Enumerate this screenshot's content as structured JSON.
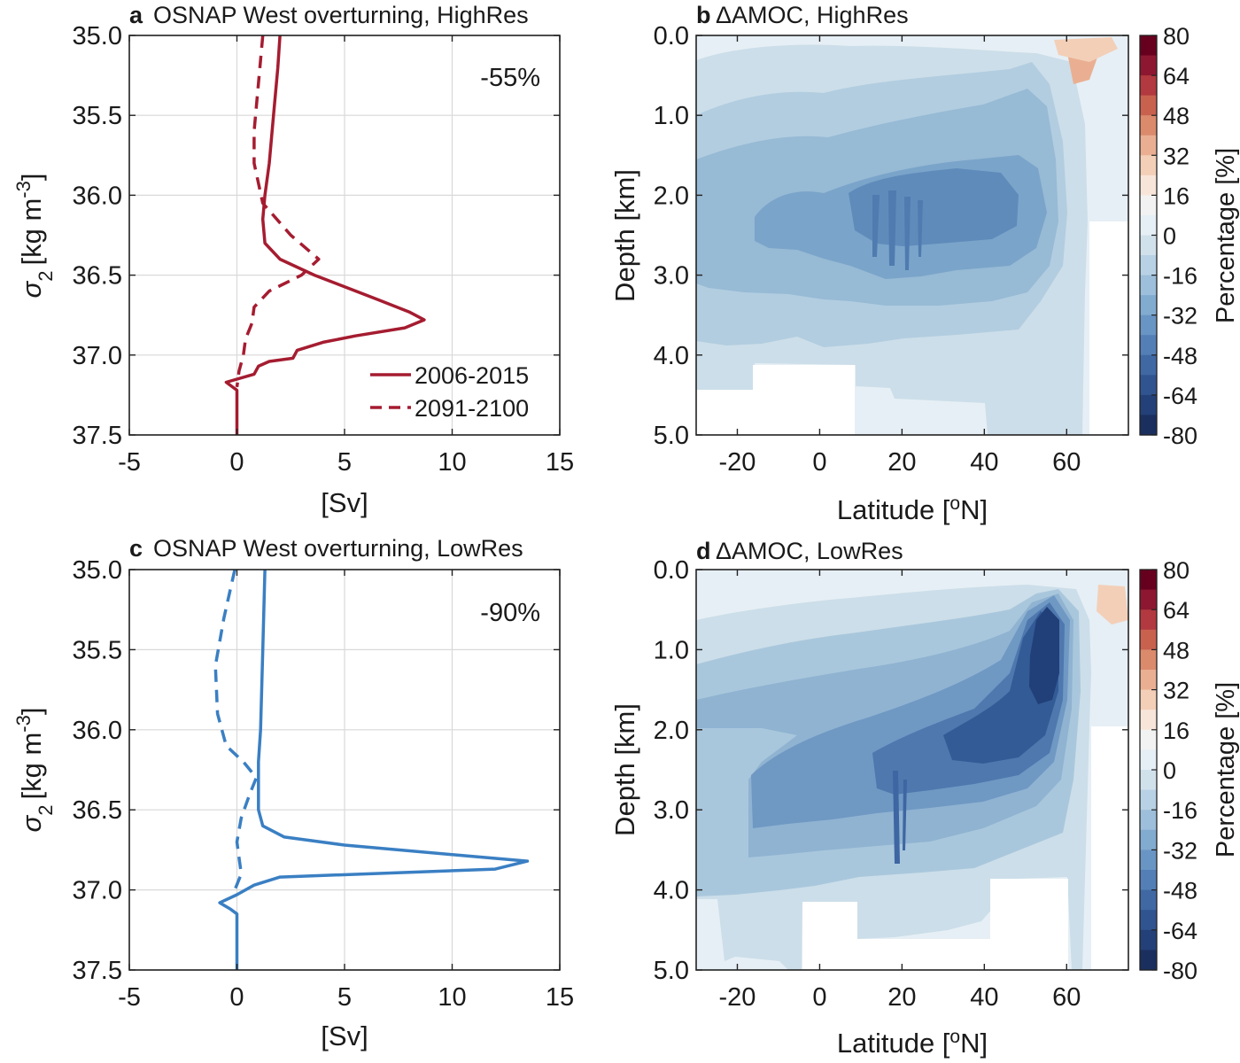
{
  "chart_data": [
    {
      "panel": "a",
      "type": "line",
      "title_letter": "a",
      "title": "OSNAP West overturning, HighRes",
      "annotation": "-55%",
      "xlabel": "[Sv]",
      "ylabel_symbol": "σ",
      "ylabel_sub": "2",
      "ylabel_unit": "[kg m",
      "ylabel_sup": "-3",
      "ylabel_close": "]",
      "xlim": [
        -5,
        15
      ],
      "ylim": [
        35.0,
        37.5
      ],
      "y_reversed": true,
      "xticks": [
        -5,
        0,
        5,
        10,
        15
      ],
      "xtick_labels": [
        "-5",
        "0",
        "5",
        "10",
        "15"
      ],
      "yticks": [
        35.0,
        35.5,
        36.0,
        36.5,
        37.0,
        37.5
      ],
      "ytick_labels": [
        "35.0",
        "35.5",
        "36.0",
        "36.5",
        "37.0",
        "37.5"
      ],
      "grid": true,
      "color": "#a51c30",
      "legend_position": "bottom-right",
      "series": [
        {
          "name": "2006-2015",
          "style": "solid",
          "points": [
            [
              2.0,
              35.0
            ],
            [
              1.9,
              35.2
            ],
            [
              1.7,
              35.5
            ],
            [
              1.5,
              35.8
            ],
            [
              1.3,
              36.0
            ],
            [
              1.2,
              36.15
            ],
            [
              1.3,
              36.3
            ],
            [
              2.0,
              36.4
            ],
            [
              3.6,
              36.5
            ],
            [
              6.5,
              36.65
            ],
            [
              8.0,
              36.73
            ],
            [
              8.7,
              36.78
            ],
            [
              7.8,
              36.83
            ],
            [
              5.5,
              36.88
            ],
            [
              4.0,
              36.92
            ],
            [
              2.8,
              36.97
            ],
            [
              2.6,
              37.02
            ],
            [
              1.5,
              37.04
            ],
            [
              1.0,
              37.07
            ],
            [
              0.8,
              37.12
            ],
            [
              -0.5,
              37.17
            ],
            [
              0.0,
              37.22
            ],
            [
              0.0,
              37.5
            ]
          ]
        },
        {
          "name": "2091-2100",
          "style": "dashed",
          "points": [
            [
              1.2,
              35.0
            ],
            [
              1.0,
              35.3
            ],
            [
              0.8,
              35.6
            ],
            [
              0.8,
              35.8
            ],
            [
              1.2,
              36.05
            ],
            [
              2.5,
              36.25
            ],
            [
              3.8,
              36.4
            ],
            [
              3.0,
              36.5
            ],
            [
              1.5,
              36.6
            ],
            [
              0.8,
              36.7
            ],
            [
              0.7,
              36.8
            ],
            [
              0.4,
              36.9
            ],
            [
              0.3,
              37.0
            ],
            [
              0.1,
              37.1
            ],
            [
              0.0,
              37.2
            ]
          ]
        }
      ]
    },
    {
      "panel": "b",
      "type": "heatmap",
      "title_letter": "b",
      "title": "ΔAMOC, HighRes",
      "xlabel": "Latitude [",
      "xlabel_sup": "o",
      "xlabel_end": "N]",
      "ylabel": "Depth [km]",
      "xlim": [
        -30,
        75
      ],
      "ylim": [
        0,
        5
      ],
      "y_reversed": true,
      "xticks": [
        -20,
        0,
        20,
        40,
        60
      ],
      "xtick_labels": [
        "-20",
        "0",
        "20",
        "40",
        "60"
      ],
      "yticks": [
        0,
        1,
        2,
        3,
        4,
        5
      ],
      "ytick_labels": [
        "0.0",
        "1.0",
        "2.0",
        "3.0",
        "4.0",
        "5.0"
      ],
      "levels": [
        {
          "value": -24,
          "color": "#ccdee9"
        },
        {
          "value": -32,
          "color": "#b2cde0"
        },
        {
          "value": -40,
          "color": "#97bad5"
        },
        {
          "value": -48,
          "color": "#7aa4c9"
        },
        {
          "value": -56,
          "color": "#5f8bbb"
        }
      ],
      "background_color": "#e6eff5"
    },
    {
      "panel": "c",
      "type": "line",
      "title_letter": "c",
      "title": "OSNAP West overturning, LowRes",
      "annotation": "-90%",
      "xlabel": "[Sv]",
      "ylabel_symbol": "σ",
      "ylabel_sub": "2",
      "ylabel_unit": "[kg m",
      "ylabel_sup": "-3",
      "ylabel_close": "]",
      "xlim": [
        -5,
        15
      ],
      "ylim": [
        35.0,
        37.5
      ],
      "y_reversed": true,
      "xticks": [
        -5,
        0,
        5,
        10,
        15
      ],
      "xtick_labels": [
        "-5",
        "0",
        "5",
        "10",
        "15"
      ],
      "yticks": [
        35.0,
        35.5,
        36.0,
        36.5,
        37.0,
        37.5
      ],
      "ytick_labels": [
        "35.0",
        "35.5",
        "36.0",
        "36.5",
        "37.0",
        "37.5"
      ],
      "grid": true,
      "color": "#3a7fc3",
      "series": [
        {
          "name": "2006-2015",
          "style": "solid",
          "points": [
            [
              1.3,
              35.0
            ],
            [
              1.2,
              35.5
            ],
            [
              1.1,
              36.0
            ],
            [
              1.0,
              36.2
            ],
            [
              1.0,
              36.5
            ],
            [
              1.2,
              36.6
            ],
            [
              2.2,
              36.67
            ],
            [
              5.0,
              36.72
            ],
            [
              10.0,
              36.78
            ],
            [
              13.5,
              36.82
            ],
            [
              12.0,
              36.87
            ],
            [
              2.0,
              36.92
            ],
            [
              0.8,
              36.97
            ],
            [
              0.0,
              37.03
            ],
            [
              -0.8,
              37.08
            ],
            [
              -0.3,
              37.12
            ],
            [
              0.0,
              37.15
            ],
            [
              0.0,
              37.5
            ]
          ]
        },
        {
          "name": "2091-2100",
          "style": "dashed",
          "points": [
            [
              -0.1,
              35.0
            ],
            [
              -0.6,
              35.3
            ],
            [
              -1.0,
              35.6
            ],
            [
              -0.9,
              35.9
            ],
            [
              -0.5,
              36.1
            ],
            [
              0.3,
              36.2
            ],
            [
              0.9,
              36.3
            ],
            [
              0.6,
              36.4
            ],
            [
              0.2,
              36.55
            ],
            [
              0.0,
              36.7
            ],
            [
              0.1,
              36.8
            ],
            [
              0.2,
              36.9
            ],
            [
              -0.1,
              37.0
            ]
          ]
        }
      ]
    },
    {
      "panel": "d",
      "type": "heatmap",
      "title_letter": "d",
      "title": "ΔAMOC, LowRes",
      "xlabel": "Latitude [",
      "xlabel_sup": "o",
      "xlabel_end": "N]",
      "ylabel": "Depth [km]",
      "xlim": [
        -30,
        75
      ],
      "ylim": [
        0,
        5
      ],
      "y_reversed": true,
      "xticks": [
        -20,
        0,
        20,
        40,
        60
      ],
      "xtick_labels": [
        "-20",
        "0",
        "20",
        "40",
        "60"
      ],
      "yticks": [
        0,
        1,
        2,
        3,
        4,
        5
      ],
      "ytick_labels": [
        "0.0",
        "1.0",
        "2.0",
        "3.0",
        "4.0",
        "5.0"
      ],
      "levels": [
        {
          "value": -24,
          "color": "#ccdee9"
        },
        {
          "value": -32,
          "color": "#a9c7dc"
        },
        {
          "value": -40,
          "color": "#8fb3d1"
        },
        {
          "value": -48,
          "color": "#6f98c3"
        },
        {
          "value": -56,
          "color": "#4e78ae"
        },
        {
          "value": -64,
          "color": "#335b96"
        },
        {
          "value": -72,
          "color": "#213f78"
        }
      ],
      "background_color": "#e6eff5"
    }
  ],
  "colorbar": {
    "label": "Percentage [%]",
    "ticks": [
      "80",
      "64",
      "48",
      "32",
      "16",
      "0",
      "-16",
      "-32",
      "-48",
      "-64",
      "-80"
    ],
    "colors": [
      "#67001f",
      "#8d1730",
      "#b2393f",
      "#c9614f",
      "#db8a6c",
      "#eaaf92",
      "#f3cfb8",
      "#f8e5d9",
      "#f2f2f2",
      "#e6eff5",
      "#d1e1ec",
      "#b8d1e4",
      "#9dbfdb",
      "#82abd0",
      "#6995c4",
      "#537fb6",
      "#4069a4",
      "#30548f",
      "#234078",
      "#1a2f5e"
    ]
  },
  "tick_glyphs": {
    "x_minus": "−"
  }
}
